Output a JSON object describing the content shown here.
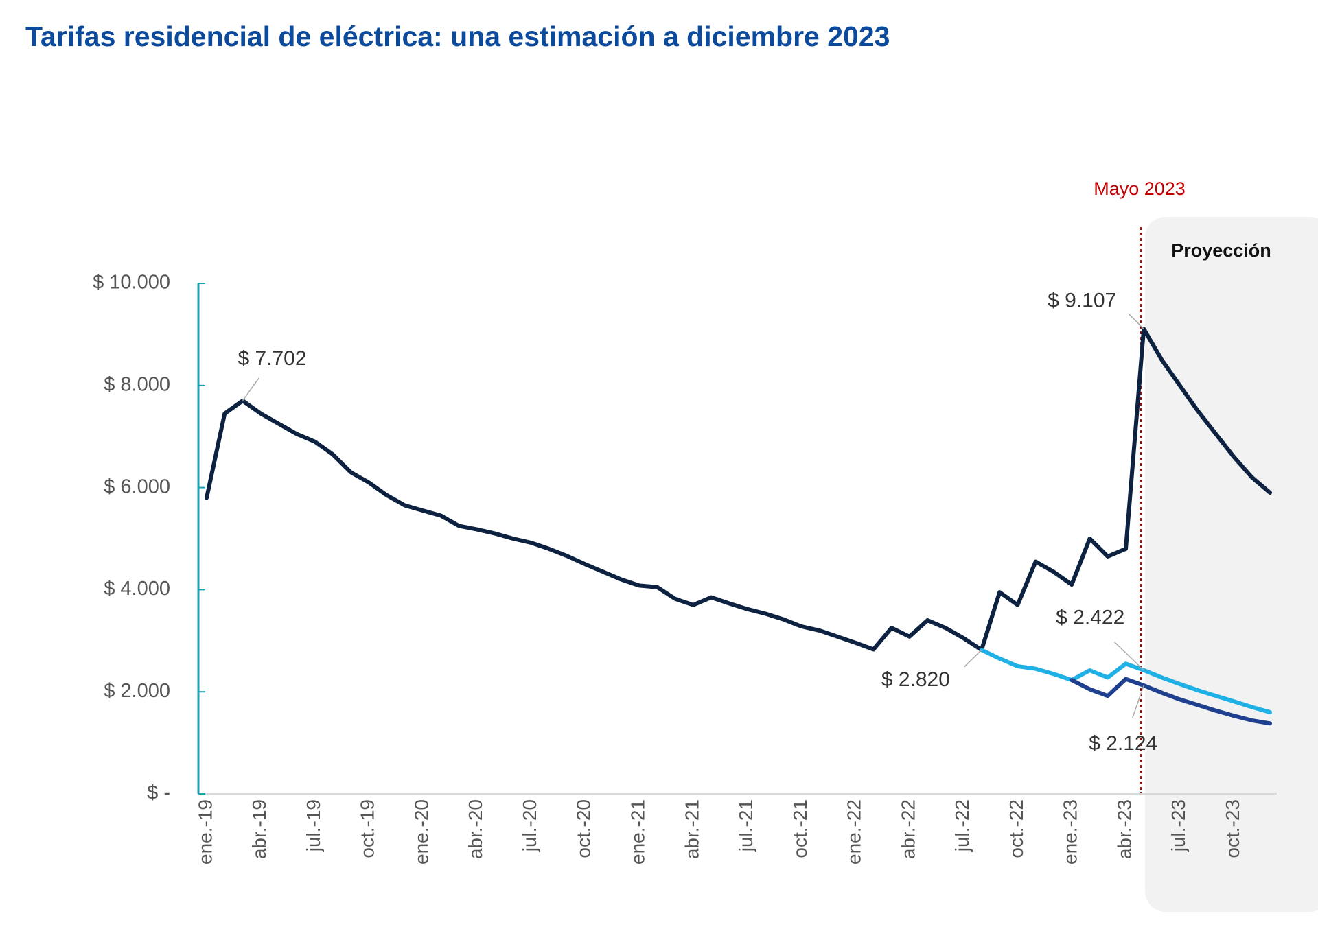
{
  "chart_data": {
    "type": "line",
    "title": "Tarifas residencial de eléctrica: una estimación a diciembre 2023",
    "annotations": [
      "Mayo 2023",
      "Proyección"
    ],
    "categories": [
      "ene.-19",
      null,
      null,
      "abr.-19",
      null,
      null,
      "jul.-19",
      null,
      null,
      "oct.-19",
      null,
      null,
      "ene.-20",
      null,
      null,
      "abr.-20",
      null,
      null,
      "jul.-20",
      null,
      null,
      "oct.-20",
      null,
      null,
      "ene.-21",
      null,
      null,
      "abr.-21",
      null,
      null,
      "jul.-21",
      null,
      null,
      "oct.-21",
      null,
      null,
      "ene.-22",
      null,
      null,
      "abr.-22",
      null,
      null,
      "jul.-22",
      null,
      null,
      "oct.-22",
      null,
      null,
      "ene.-23",
      null,
      null,
      "abr.-23",
      null,
      null,
      "jul.-23",
      null,
      null,
      "oct.-23",
      null,
      null
    ],
    "ylim": [
      0,
      10000
    ],
    "yticks": [
      {
        "value": 0,
        "label": "$ -"
      },
      {
        "value": 2000,
        "label": "$ 2.000"
      },
      {
        "value": 4000,
        "label": "$ 4.000"
      },
      {
        "value": 6000,
        "label": "$ 6.000"
      },
      {
        "value": 8000,
        "label": "$ 8.000"
      },
      {
        "value": 10000,
        "label": "$ 10.000"
      }
    ],
    "series": [
      {
        "color": "#0d2240",
        "values": [
          5800,
          7450,
          7702,
          7450,
          7250,
          7050,
          6900,
          6650,
          6300,
          6100,
          5850,
          5650,
          5550,
          5450,
          5250,
          5180,
          5100,
          5000,
          4920,
          4800,
          4660,
          4500,
          4350,
          4200,
          4080,
          4050,
          3820,
          3700,
          3850,
          3730,
          3620,
          3530,
          3420,
          3280,
          3200,
          3080,
          2960,
          2830,
          3250,
          3080,
          3400,
          3250,
          3050,
          2820,
          3950,
          3700,
          4550,
          4350,
          4100,
          5000,
          4650,
          4800,
          9107,
          8500,
          8000,
          7500,
          7050,
          6600,
          6200,
          5900
        ],
        "value_labels": [
          null,
          null,
          "$ 7.702",
          null,
          null,
          null,
          null,
          null,
          null,
          null,
          null,
          null,
          null,
          null,
          null,
          null,
          null,
          null,
          null,
          null,
          null,
          null,
          null,
          null,
          null,
          null,
          null,
          null,
          null,
          null,
          null,
          null,
          null,
          null,
          null,
          null,
          null,
          null,
          null,
          null,
          null,
          null,
          null,
          "$ 2.820",
          null,
          null,
          null,
          null,
          null,
          null,
          null,
          null,
          "$ 9.107",
          null,
          null,
          null,
          null,
          null,
          null,
          null
        ]
      },
      {
        "color": "#1fb0e6",
        "values": [
          null,
          null,
          null,
          null,
          null,
          null,
          null,
          null,
          null,
          null,
          null,
          null,
          null,
          null,
          null,
          null,
          null,
          null,
          null,
          null,
          null,
          null,
          null,
          null,
          null,
          null,
          null,
          null,
          null,
          null,
          null,
          null,
          null,
          null,
          null,
          null,
          null,
          null,
          null,
          null,
          null,
          null,
          null,
          2820,
          2650,
          2500,
          2450,
          2350,
          2230,
          2420,
          2280,
          2550,
          2422,
          2280,
          2150,
          2030,
          1920,
          1810,
          1700,
          1600
        ],
        "value_labels": [
          null,
          null,
          null,
          null,
          null,
          null,
          null,
          null,
          null,
          null,
          null,
          null,
          null,
          null,
          null,
          null,
          null,
          null,
          null,
          null,
          null,
          null,
          null,
          null,
          null,
          null,
          null,
          null,
          null,
          null,
          null,
          null,
          null,
          null,
          null,
          null,
          null,
          null,
          null,
          null,
          null,
          null,
          null,
          null,
          null,
          null,
          null,
          null,
          null,
          null,
          null,
          null,
          "$ 2.422",
          null,
          null,
          null,
          null,
          null,
          null,
          null
        ]
      },
      {
        "color": "#1f3f8f",
        "values": [
          null,
          null,
          null,
          null,
          null,
          null,
          null,
          null,
          null,
          null,
          null,
          null,
          null,
          null,
          null,
          null,
          null,
          null,
          null,
          null,
          null,
          null,
          null,
          null,
          null,
          null,
          null,
          null,
          null,
          null,
          null,
          null,
          null,
          null,
          null,
          null,
          null,
          null,
          null,
          null,
          null,
          null,
          null,
          null,
          null,
          null,
          null,
          null,
          2230,
          2050,
          1920,
          2250,
          2124,
          1980,
          1850,
          1740,
          1630,
          1530,
          1440,
          1380
        ],
        "value_labels": [
          null,
          null,
          null,
          null,
          null,
          null,
          null,
          null,
          null,
          null,
          null,
          null,
          null,
          null,
          null,
          null,
          null,
          null,
          null,
          null,
          null,
          null,
          null,
          null,
          null,
          null,
          null,
          null,
          null,
          null,
          null,
          null,
          null,
          null,
          null,
          null,
          null,
          null,
          null,
          null,
          null,
          null,
          null,
          null,
          null,
          null,
          null,
          null,
          null,
          null,
          null,
          null,
          "$ 2.124",
          null,
          null,
          null,
          null,
          null,
          null,
          null
        ]
      }
    ]
  }
}
